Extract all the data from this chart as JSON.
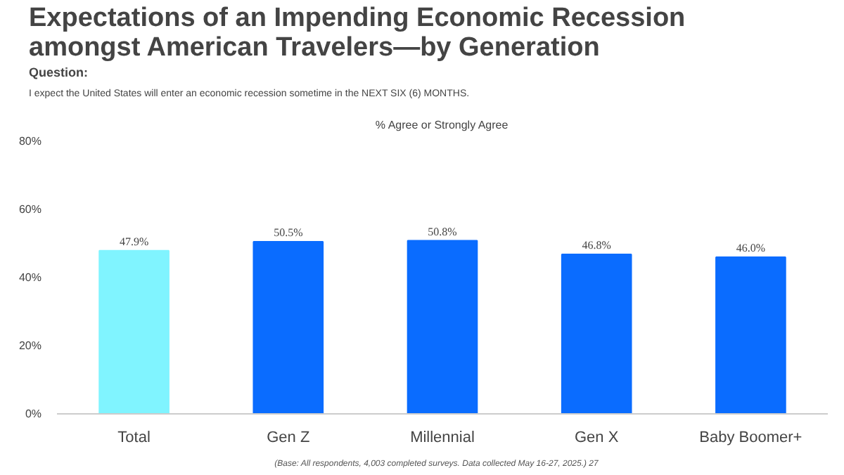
{
  "chart_data": {
    "type": "bar",
    "title": "Expectations of an Impending Economic Recession amongst American Travelers—by Generation",
    "subtitle": "I expect the United States will enter an economic recession sometime in the NEXT SIX (6) MONTHS.",
    "ylabel": "% Agree or Strongly Agree",
    "annotations": [
      "Question:",
      "(Base: All respondents, 4,003 completed surveys. Data collected May 16-27, 2025.)",
      "27"
    ],
    "categories": [
      "Total",
      "Gen Z",
      "Millennial",
      "Gen X",
      "Baby Boomer+"
    ],
    "values": [
      47.9,
      50.5,
      50.8,
      46.8,
      46.0
    ],
    "value_labels": [
      "47.9%",
      "50.5%",
      "50.8%",
      "46.8%",
      "46.0%"
    ],
    "colors": [
      "#80f4ff",
      "#0a6cff",
      "#0a6cff",
      "#0a6cff",
      "#0a6cff"
    ],
    "ylim": [
      0,
      80
    ],
    "yticks": [
      {
        "value": 0,
        "label": "0%"
      },
      {
        "value": 20,
        "label": "20%"
      },
      {
        "value": 40,
        "label": "40%"
      },
      {
        "value": 60,
        "label": "60%"
      },
      {
        "value": 80,
        "label": "80%"
      }
    ],
    "grid": false
  }
}
